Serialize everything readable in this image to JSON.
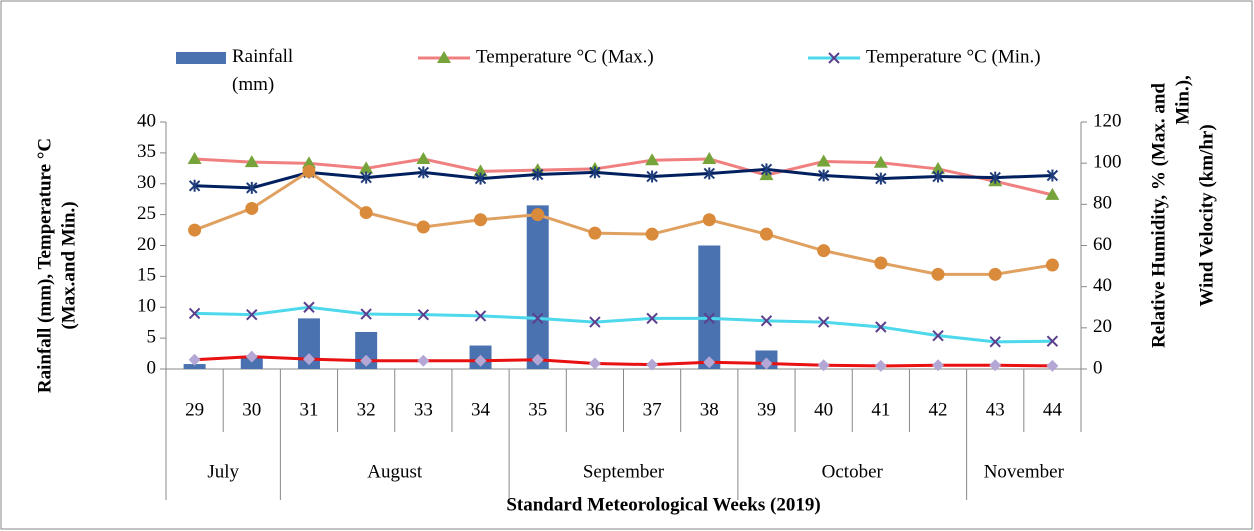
{
  "chart_data": {
    "type": "combo",
    "x_label": "Standard Meteorological Weeks (2019)",
    "y_label": [
      "Rainfall (mm), Temperature °C",
      "(Max.and Min.)"
    ],
    "y2_label": [
      "Relative Humidity, % (Max. and",
      "Min.),",
      "Wind Velocity (km/hr)"
    ],
    "categories": [
      "29",
      "30",
      "31",
      "32",
      "33",
      "34",
      "35",
      "36",
      "37",
      "38",
      "39",
      "40",
      "41",
      "42",
      "43",
      "44"
    ],
    "groups": [
      {
        "label": "July",
        "span": 2
      },
      {
        "label": "August",
        "span": 4
      },
      {
        "label": "September",
        "span": 4
      },
      {
        "label": "October",
        "span": 4
      },
      {
        "label": "November",
        "span": 2
      }
    ],
    "ylim": [
      0,
      40
    ],
    "yticks": [
      0,
      5,
      10,
      15,
      20,
      25,
      30,
      35,
      40
    ],
    "y2lim": [
      0,
      120
    ],
    "y2ticks": [
      0,
      20,
      40,
      60,
      80,
      100,
      120
    ],
    "series": [
      {
        "name": "Rainfall (mm)",
        "kind": "bar",
        "color": "#4a72b0",
        "values": [
          0.8,
          2,
          8.2,
          6,
          0,
          3.8,
          26.5,
          0,
          0,
          20,
          3,
          0,
          0,
          0,
          0,
          0
        ]
      },
      {
        "name": "Temperature °C (Max.)",
        "kind": "line",
        "marker": "triangle",
        "color": "#f08080",
        "marker_color": "#77a33b",
        "values": [
          34,
          33.5,
          33.3,
          32.5,
          34,
          32,
          32.2,
          32.4,
          33.8,
          34,
          31.4,
          33.6,
          33.4,
          32.4,
          30.4,
          28.2
        ]
      },
      {
        "name": "Temperature °C (Min.)",
        "kind": "line",
        "marker": "x",
        "color": "#4dd8ec",
        "marker_color": "#5b3f8c",
        "values": [
          9,
          8.8,
          10,
          8.9,
          8.8,
          8.6,
          8.2,
          7.6,
          8.2,
          8.2,
          7.8,
          7.6,
          6.8,
          5.4,
          4.4,
          4.5
        ]
      },
      {
        "kind": "line",
        "marker": "star",
        "color": "#002060",
        "marker_color": "#1f3d7a",
        "axis": "y2",
        "values": [
          89,
          88,
          95.5,
          93,
          95.5,
          92.5,
          94.5,
          95.5,
          93.5,
          95,
          97,
          94,
          92.5,
          93.5,
          93,
          94
        ]
      },
      {
        "kind": "line",
        "marker": "circle",
        "color": "#e0a060",
        "marker_color": "#d98a3a",
        "axis": "y2",
        "values": [
          67.5,
          78,
          96,
          76,
          69,
          72.5,
          75,
          66,
          65.5,
          72.5,
          65.5,
          57.5,
          51.5,
          46,
          46,
          50.5
        ]
      },
      {
        "kind": "line",
        "marker": "diamond",
        "color": "#e81010",
        "marker_color": "#b4a7d6",
        "axis": "y2",
        "values": [
          4.5,
          6,
          4.8,
          4,
          4,
          4,
          4.5,
          2.7,
          2.1,
          3.3,
          2.7,
          1.8,
          1.5,
          1.8,
          1.8,
          1.5
        ]
      }
    ]
  }
}
